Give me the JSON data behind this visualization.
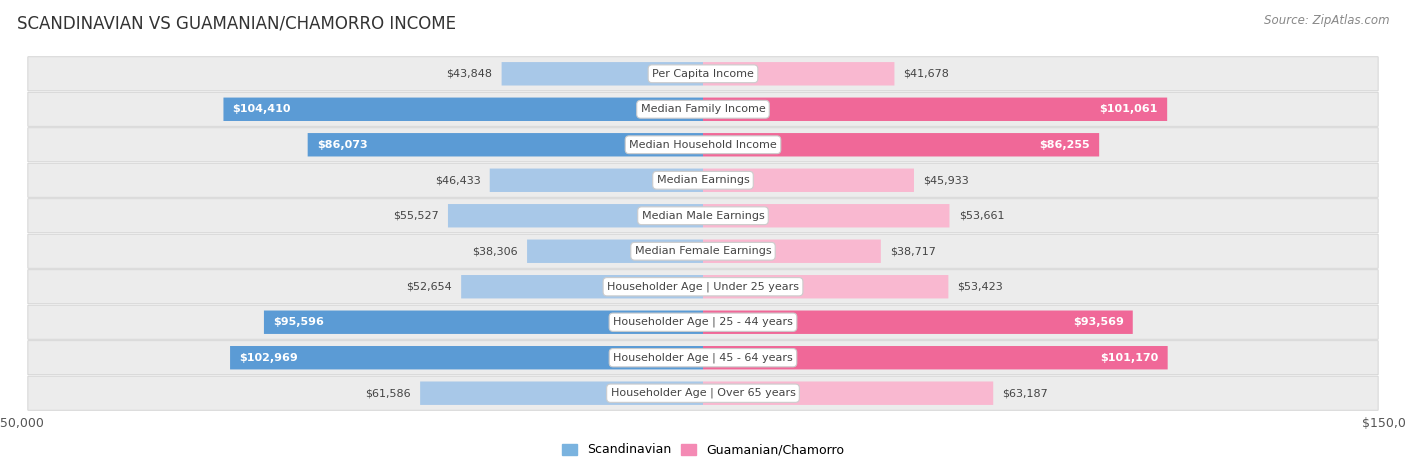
{
  "title": "SCANDINAVIAN VS GUAMANIAN/CHAMORRO INCOME",
  "source": "Source: ZipAtlas.com",
  "categories": [
    "Per Capita Income",
    "Median Family Income",
    "Median Household Income",
    "Median Earnings",
    "Median Male Earnings",
    "Median Female Earnings",
    "Householder Age | Under 25 years",
    "Householder Age | 25 - 44 years",
    "Householder Age | 45 - 64 years",
    "Householder Age | Over 65 years"
  ],
  "scandinavian_values": [
    43848,
    104410,
    86073,
    46433,
    55527,
    38306,
    52654,
    95596,
    102969,
    61586
  ],
  "guamanian_values": [
    41678,
    101061,
    86255,
    45933,
    53661,
    38717,
    53423,
    93569,
    101170,
    63187
  ],
  "scandinavian_labels": [
    "$43,848",
    "$104,410",
    "$86,073",
    "$46,433",
    "$55,527",
    "$38,306",
    "$52,654",
    "$95,596",
    "$102,969",
    "$61,586"
  ],
  "guamanian_labels": [
    "$41,678",
    "$101,061",
    "$86,255",
    "$45,933",
    "$53,661",
    "$38,717",
    "$53,423",
    "$93,569",
    "$101,170",
    "$63,187"
  ],
  "max_value": 150000,
  "color_scandinavian_light": "#a8c8e8",
  "color_scandinavian_dark": "#5b9bd5",
  "color_guamanian_light": "#f9b8d0",
  "color_guamanian_dark": "#f06898",
  "color_bg_row": "#ececec",
  "legend_scandinavian_color": "#7ab3df",
  "legend_guamanian_color": "#f48ab4",
  "legend_scandinavian": "Scandinavian",
  "legend_guamanian": "Guamanian/Chamorro",
  "large_value_threshold": 80000
}
